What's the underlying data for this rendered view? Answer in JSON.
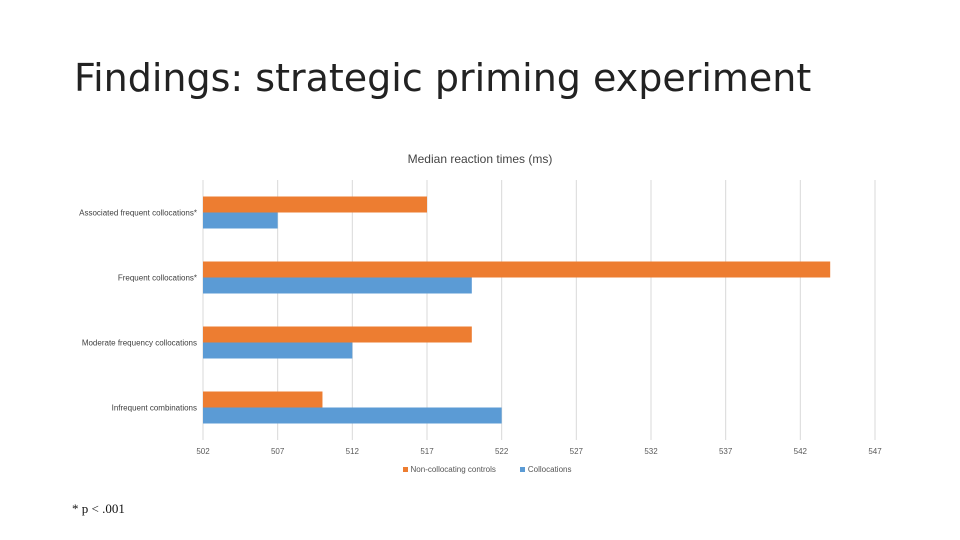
{
  "slide": {
    "title": "Findings: strategic priming experiment",
    "footnote": "* p < .001"
  },
  "colors": {
    "non_collocating": "#ED7D31",
    "collocations": "#5B9BD5",
    "grid": "#D9D9D9"
  },
  "chart_data": {
    "type": "bar",
    "orientation": "horizontal",
    "title": "Median reaction times (ms)",
    "categories": [
      "Associated frequent collocations*",
      "Frequent collocations*",
      "Moderate frequency collocations",
      "Infrequent combinations"
    ],
    "series": [
      {
        "name": "Non-collocating controls",
        "values": [
          517,
          544,
          520,
          510
        ]
      },
      {
        "name": "Collocations",
        "values": [
          507,
          520,
          512,
          522
        ]
      }
    ],
    "xlim": [
      502,
      547
    ],
    "xticks": [
      "502",
      "507",
      "512",
      "517",
      "522",
      "527",
      "532",
      "537",
      "542",
      "547"
    ],
    "legend_position": "bottom",
    "grid": true
  }
}
